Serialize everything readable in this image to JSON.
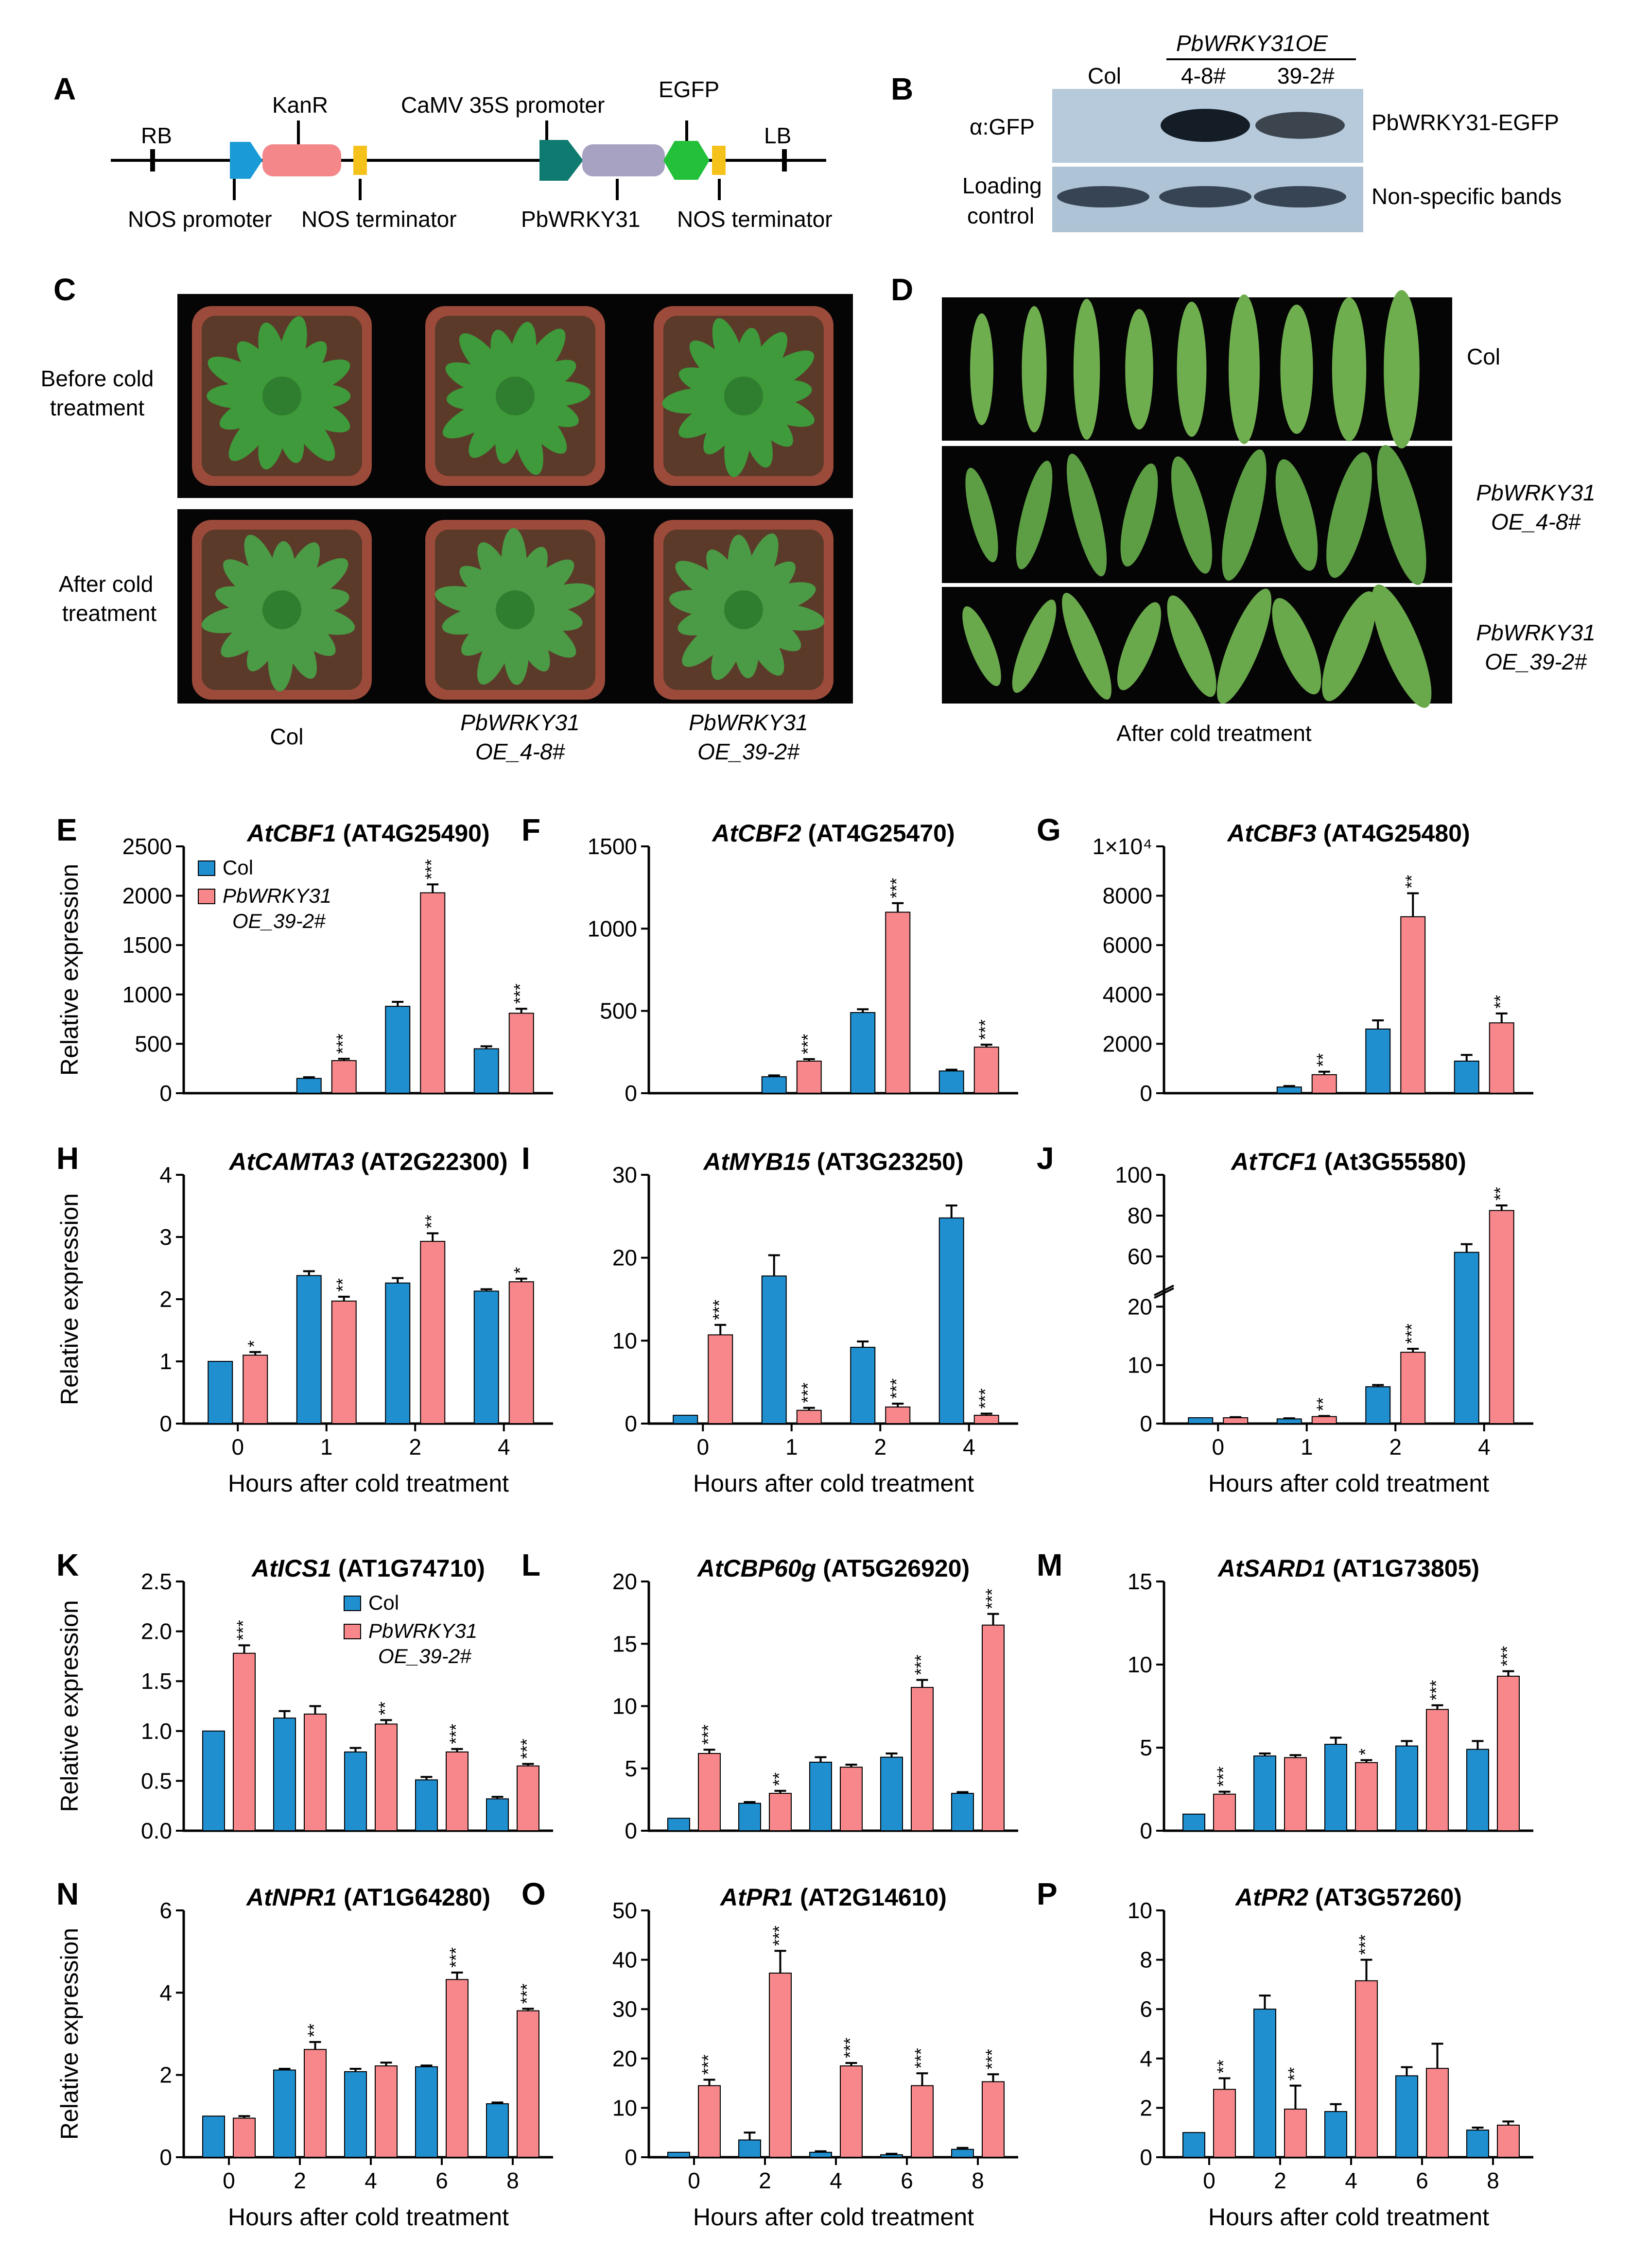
{
  "colors": {
    "col": "#1f8fd0",
    "oe": "#f7878a",
    "kanr": "#f4878a",
    "rb_arrow": "#1a9ad6",
    "promoter35s": "#0f7a70",
    "pbwrky": "#a8a2c2",
    "egfp": "#23c03a",
    "terminator": "#f5c21b",
    "photo_bg": "#050505"
  },
  "panelA": {
    "letter": "A",
    "labels": {
      "rb": "RB",
      "lb": "LB",
      "kanr": "KanR",
      "camv": "CaMV 35S promoter",
      "egfp": "EGFP",
      "nos_promoter": "NOS promoter",
      "nos_term1": "NOS terminator",
      "pbwrky": "PbWRKY31",
      "nos_term2": "NOS terminator"
    }
  },
  "panelB": {
    "letter": "B",
    "header": "PbWRKY31OE",
    "lanes": [
      "Col",
      "4-8#",
      "39-2#"
    ],
    "row1_left": "α:GFP",
    "row1_right": "PbWRKY31-EGFP",
    "row2_left_1": "Loading",
    "row2_left_2": "control",
    "row2_right": "Non-specific bands",
    "row1_band_intensity": [
      0.0,
      1.0,
      0.55
    ],
    "row2_band_intensity": [
      0.85,
      0.85,
      0.85
    ]
  },
  "panelC": {
    "letter": "C",
    "row1_1": "Before cold",
    "row1_2": "treatment",
    "row2_1": "After cold",
    "row2_2": "treatment",
    "col1": "Col",
    "col2_1": "PbWRKY31",
    "col2_2": "OE_4-8#",
    "col3_1": "PbWRKY31",
    "col3_2": "OE_39-2#"
  },
  "panelD": {
    "letter": "D",
    "row1": "Col",
    "row2_1": "PbWRKY31",
    "row2_2": "OE_4-8#",
    "row3_1": "PbWRKY31",
    "row3_2": "OE_39-2#",
    "caption": "After cold treatment"
  },
  "chart_data": [
    {
      "id": "E",
      "type": "bar",
      "letter": "E",
      "gene": "AtCBF1",
      "locus": " (AT4G25490)",
      "categories": [
        "0",
        "1",
        "2",
        "4"
      ],
      "show_xaxis": false,
      "series": [
        {
          "name": "Col",
          "values": [
            0,
            150,
            880,
            450
          ],
          "err": [
            0,
            12,
            45,
            25
          ]
        },
        {
          "name": "PbWRKY31 OE_39-2#",
          "values": [
            0,
            330,
            2030,
            810
          ],
          "err": [
            0,
            18,
            85,
            45
          ]
        }
      ],
      "sig": [
        "",
        "***",
        "***",
        "***"
      ],
      "ylim": [
        0,
        2500
      ],
      "yticks": [
        "0",
        "500",
        "1000",
        "1500",
        "2000",
        "2500"
      ],
      "ytickvals": [
        0,
        500,
        1000,
        1500,
        2000,
        2500
      ],
      "ylabel": "Relative expression",
      "xlabel": "",
      "legend": {
        "col": "Col",
        "oe1": "PbWRKY31",
        "oe2": "OE_39-2#"
      }
    },
    {
      "id": "F",
      "type": "bar",
      "letter": "F",
      "gene": "AtCBF2",
      "locus": " (AT4G25470)",
      "categories": [
        "0",
        "1",
        "2",
        "4"
      ],
      "show_xaxis": false,
      "series": [
        {
          "name": "Col",
          "values": [
            0,
            100,
            490,
            135
          ],
          "err": [
            0,
            8,
            20,
            8
          ]
        },
        {
          "name": "PbWRKY31 OE_39-2#",
          "values": [
            0,
            195,
            1100,
            280
          ],
          "err": [
            0,
            12,
            55,
            15
          ]
        }
      ],
      "sig": [
        "",
        "***",
        "***",
        "***"
      ],
      "ylim": [
        0,
        1500
      ],
      "yticks": [
        "0",
        "500",
        "1000",
        "1500"
      ],
      "ytickvals": [
        0,
        500,
        1000,
        1500
      ],
      "ylabel": "",
      "xlabel": ""
    },
    {
      "id": "G",
      "type": "bar",
      "letter": "G",
      "gene": "AtCBF3",
      "locus": " (AT4G25480)",
      "categories": [
        "0",
        "1",
        "2",
        "4"
      ],
      "show_xaxis": false,
      "series": [
        {
          "name": "Col",
          "values": [
            0,
            250,
            2600,
            1300
          ],
          "err": [
            0,
            40,
            350,
            250
          ]
        },
        {
          "name": "PbWRKY31 OE_39-2#",
          "values": [
            0,
            750,
            7150,
            2850
          ],
          "err": [
            0,
            120,
            950,
            380
          ]
        }
      ],
      "sig": [
        "",
        "**",
        "**",
        "**"
      ],
      "ylim": [
        0,
        10000
      ],
      "yticks": [
        "0",
        "2000",
        "4000",
        "6000",
        "8000",
        "1×10⁴"
      ],
      "ytickvals": [
        0,
        2000,
        4000,
        6000,
        8000,
        10000
      ],
      "ylabel": "",
      "xlabel": ""
    },
    {
      "id": "H",
      "type": "bar",
      "letter": "H",
      "gene": "AtCAMTA3",
      "locus": " (AT2G22300)",
      "categories": [
        "0",
        "1",
        "2",
        "4"
      ],
      "show_xaxis": true,
      "series": [
        {
          "name": "Col",
          "values": [
            1.0,
            2.38,
            2.26,
            2.13
          ],
          "err": [
            0,
            0.07,
            0.08,
            0.03
          ]
        },
        {
          "name": "PbWRKY31 OE_39-2#",
          "values": [
            1.1,
            1.97,
            2.93,
            2.28
          ],
          "err": [
            0.05,
            0.07,
            0.13,
            0.05
          ]
        }
      ],
      "sig": [
        "*",
        "**",
        "**",
        "*"
      ],
      "ylim": [
        0,
        4
      ],
      "yticks": [
        "0",
        "1",
        "2",
        "3",
        "4"
      ],
      "ytickvals": [
        0,
        1,
        2,
        3,
        4
      ],
      "ylabel": "Relative expression",
      "xlabel": "Hours after cold treatment"
    },
    {
      "id": "I",
      "type": "bar",
      "letter": "I",
      "gene": "AtMYB15",
      "locus": " (AT3G23250)",
      "categories": [
        "0",
        "1",
        "2",
        "4"
      ],
      "show_xaxis": true,
      "series": [
        {
          "name": "Col",
          "values": [
            1.0,
            17.8,
            9.2,
            24.8
          ],
          "err": [
            0,
            2.5,
            0.7,
            1.5
          ]
        },
        {
          "name": "PbWRKY31 OE_39-2#",
          "values": [
            10.7,
            1.6,
            2.0,
            1.0
          ],
          "err": [
            1.2,
            0.3,
            0.4,
            0.2
          ]
        }
      ],
      "sig": [
        "***",
        "***",
        "***",
        "***"
      ],
      "ylim": [
        0,
        30
      ],
      "yticks": [
        "0",
        "10",
        "20",
        "30"
      ],
      "ytickvals": [
        0,
        10,
        20,
        30
      ],
      "ylabel": "",
      "xlabel": "Hours after cold treatment"
    },
    {
      "id": "J",
      "type": "bar",
      "letter": "J",
      "gene": "AtTCF1",
      "locus": " (At3G55580)",
      "categories": [
        "0",
        "1",
        "2",
        "4"
      ],
      "show_xaxis": true,
      "broken": true,
      "series": [
        {
          "name": "Col",
          "values": [
            1.0,
            0.8,
            6.3,
            62
          ],
          "err": [
            0,
            0.1,
            0.3,
            4
          ]
        },
        {
          "name": "PbWRKY31 OE_39-2#",
          "values": [
            1.0,
            1.2,
            12.2,
            82.5
          ],
          "err": [
            0.1,
            0.1,
            0.6,
            2.5
          ]
        }
      ],
      "sig": [
        "",
        "**",
        "***",
        "**"
      ],
      "ylim_lower": [
        0,
        20
      ],
      "ylim_upper": [
        50,
        100
      ],
      "yticks": [
        "0",
        "10",
        "20",
        "60",
        "80",
        "100"
      ],
      "ytickvals": [
        0,
        10,
        20,
        60,
        80,
        100
      ],
      "ylabel": "",
      "xlabel": "Hours after cold treatment"
    },
    {
      "id": "K",
      "type": "bar",
      "letter": "K",
      "gene": "AtICS1",
      "locus": " (AT1G74710)",
      "categories": [
        "0",
        "2",
        "4",
        "6",
        "8"
      ],
      "show_xaxis": false,
      "series": [
        {
          "name": "Col",
          "values": [
            1.0,
            1.13,
            0.79,
            0.51,
            0.32
          ],
          "err": [
            0,
            0.07,
            0.04,
            0.03,
            0.02
          ]
        },
        {
          "name": "PbWRKY31 OE_39-2#",
          "values": [
            1.78,
            1.17,
            1.07,
            0.79,
            0.65
          ],
          "err": [
            0.08,
            0.08,
            0.04,
            0.03,
            0.02
          ]
        }
      ],
      "sig": [
        "***",
        "",
        "**",
        "***",
        "***"
      ],
      "ylim": [
        0,
        2.5
      ],
      "yticks": [
        "0.0",
        "0.5",
        "1.0",
        "1.5",
        "2.0",
        "2.5"
      ],
      "ytickvals": [
        0,
        0.5,
        1,
        1.5,
        2,
        2.5
      ],
      "ylabel": "Relative expression",
      "xlabel": "",
      "legend": {
        "col": "Col",
        "oe1": "PbWRKY31",
        "oe2": "OE_39-2#"
      }
    },
    {
      "id": "L",
      "type": "bar",
      "letter": "L",
      "gene": "AtCBP60g",
      "locus": " (AT5G26920)",
      "categories": [
        "0",
        "2",
        "4",
        "6",
        "8"
      ],
      "show_xaxis": false,
      "series": [
        {
          "name": "Col",
          "values": [
            1.0,
            2.2,
            5.5,
            5.9,
            3.0
          ],
          "err": [
            0,
            0.1,
            0.4,
            0.3,
            0.1
          ]
        },
        {
          "name": "PbWRKY31 OE_39-2#",
          "values": [
            6.2,
            3.0,
            5.1,
            11.5,
            16.5
          ],
          "err": [
            0.3,
            0.2,
            0.2,
            0.6,
            0.9
          ]
        }
      ],
      "sig": [
        "***",
        "**",
        "",
        "***",
        "***"
      ],
      "ylim": [
        0,
        20
      ],
      "yticks": [
        "0",
        "5",
        "10",
        "15",
        "20"
      ],
      "ytickvals": [
        0,
        5,
        10,
        15,
        20
      ],
      "ylabel": "",
      "xlabel": ""
    },
    {
      "id": "M",
      "type": "bar",
      "letter": "M",
      "gene": "AtSARD1",
      "locus": " (AT1G73805)",
      "categories": [
        "0",
        "2",
        "4",
        "6",
        "8"
      ],
      "show_xaxis": false,
      "series": [
        {
          "name": "Col",
          "values": [
            1.0,
            4.5,
            5.2,
            5.1,
            4.9
          ],
          "err": [
            0,
            0.15,
            0.4,
            0.3,
            0.5
          ]
        },
        {
          "name": "PbWRKY31 OE_39-2#",
          "values": [
            2.2,
            4.4,
            4.1,
            7.3,
            9.3
          ],
          "err": [
            0.15,
            0.15,
            0.15,
            0.25,
            0.3
          ]
        }
      ],
      "sig": [
        "***",
        "",
        "*",
        "***",
        "***"
      ],
      "ylim": [
        0,
        15
      ],
      "yticks": [
        "0",
        "5",
        "10",
        "15"
      ],
      "ytickvals": [
        0,
        5,
        10,
        15
      ],
      "ylabel": "",
      "xlabel": ""
    },
    {
      "id": "N",
      "type": "bar",
      "letter": "N",
      "gene": "AtNPR1",
      "locus": " (AT1G64280)",
      "categories": [
        "0",
        "2",
        "4",
        "6",
        "8"
      ],
      "show_xaxis": true,
      "series": [
        {
          "name": "Col",
          "values": [
            1.0,
            2.12,
            2.08,
            2.2,
            1.3
          ],
          "err": [
            0,
            0.03,
            0.07,
            0.03,
            0.03
          ]
        },
        {
          "name": "PbWRKY31 OE_39-2#",
          "values": [
            0.95,
            2.62,
            2.22,
            4.32,
            3.56
          ],
          "err": [
            0.05,
            0.18,
            0.08,
            0.17,
            0.05
          ]
        }
      ],
      "sig": [
        "",
        "**",
        "",
        "***",
        "***"
      ],
      "ylim": [
        0,
        6
      ],
      "yticks": [
        "0",
        "2",
        "4",
        "6"
      ],
      "ytickvals": [
        0,
        2,
        4,
        6
      ],
      "ylabel": "Relative expression",
      "xlabel": "Hours after cold treatment"
    },
    {
      "id": "O",
      "type": "bar",
      "letter": "O",
      "gene": "AtPR1",
      "locus": " (AT2G14610)",
      "categories": [
        "0",
        "2",
        "4",
        "6",
        "8"
      ],
      "show_xaxis": true,
      "series": [
        {
          "name": "Col",
          "values": [
            1.0,
            3.5,
            1.0,
            0.5,
            1.6
          ],
          "err": [
            0,
            1.5,
            0.2,
            0.2,
            0.3
          ]
        },
        {
          "name": "PbWRKY31 OE_39-2#",
          "values": [
            14.5,
            37.3,
            18.5,
            14.5,
            15.3
          ],
          "err": [
            1.2,
            4.5,
            0.6,
            2.5,
            1.5
          ]
        }
      ],
      "sig": [
        "***",
        "***",
        "***",
        "***",
        "***"
      ],
      "ylim": [
        0,
        50
      ],
      "yticks": [
        "0",
        "10",
        "20",
        "30",
        "40",
        "50"
      ],
      "ytickvals": [
        0,
        10,
        20,
        30,
        40,
        50
      ],
      "ylabel": "",
      "xlabel": "Hours after cold treatment"
    },
    {
      "id": "P",
      "type": "bar",
      "letter": "P",
      "gene": "AtPR2",
      "locus": " (AT3G57260)",
      "categories": [
        "0",
        "2",
        "4",
        "6",
        "8"
      ],
      "show_xaxis": true,
      "series": [
        {
          "name": "Col",
          "values": [
            1.0,
            6.0,
            1.85,
            3.3,
            1.1
          ],
          "err": [
            0,
            0.55,
            0.3,
            0.35,
            0.1
          ]
        },
        {
          "name": "PbWRKY31 OE_39-2#",
          "values": [
            2.75,
            1.95,
            7.15,
            3.6,
            1.3
          ],
          "err": [
            0.45,
            0.95,
            0.85,
            1.0,
            0.15
          ]
        }
      ],
      "sig": [
        "**",
        "**",
        "***",
        "",
        ""
      ],
      "ylim": [
        0,
        10
      ],
      "yticks": [
        "0",
        "2",
        "4",
        "6",
        "8",
        "10"
      ],
      "ytickvals": [
        0,
        2,
        4,
        6,
        8,
        10
      ],
      "ylabel": "",
      "xlabel": "Hours after cold treatment"
    }
  ]
}
